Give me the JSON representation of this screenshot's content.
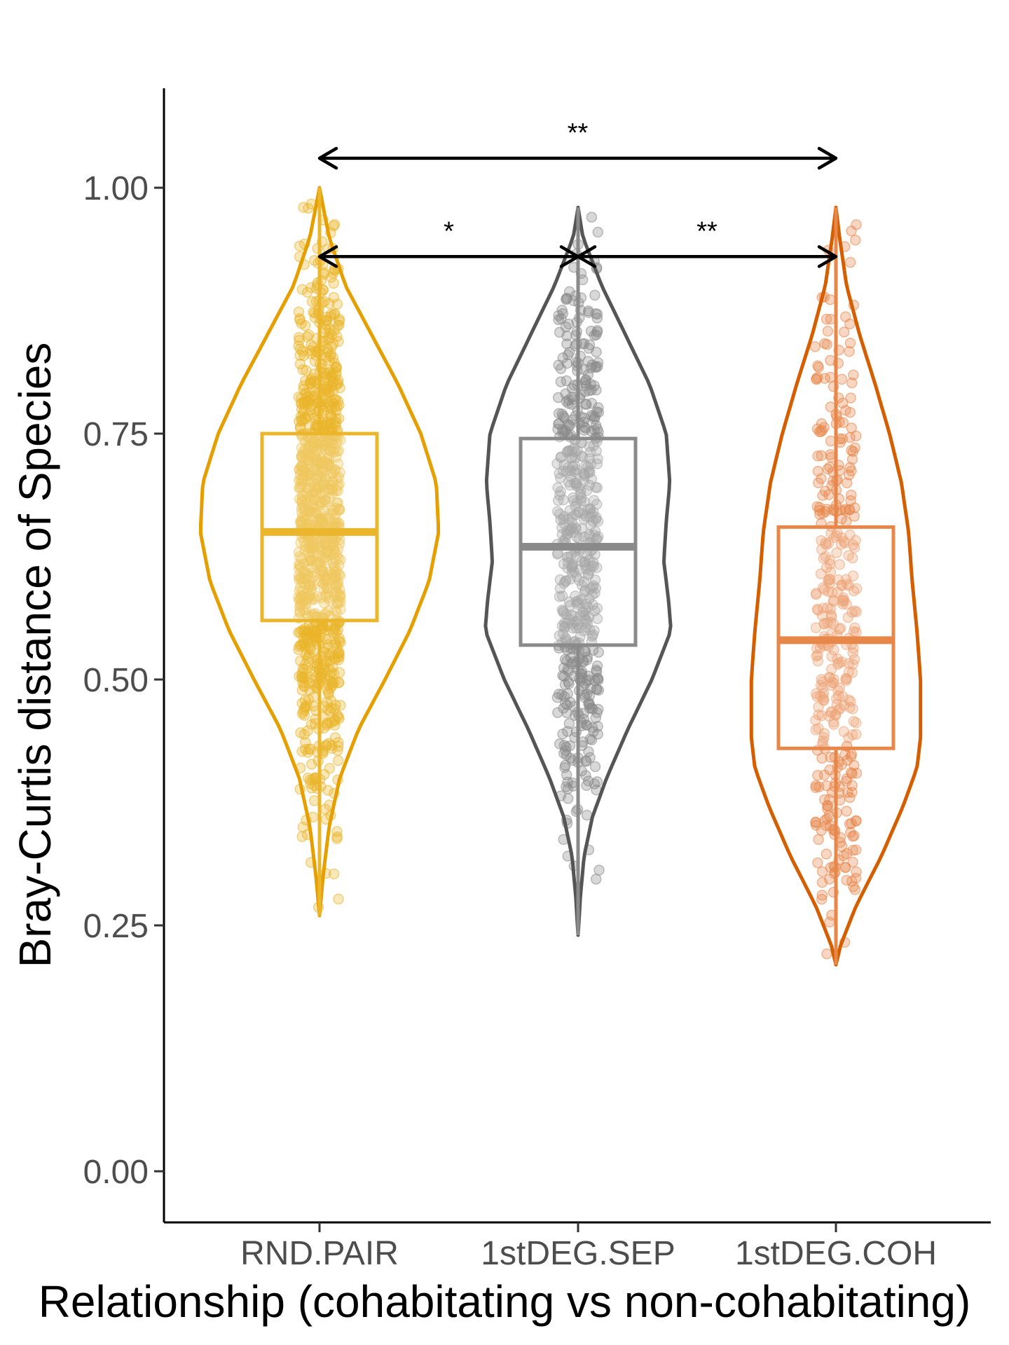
{
  "chart_data": {
    "type": "violin",
    "xlabel": "Relationship (cohabitating vs non-cohabitating)",
    "ylabel": "Bray-Curtis distance of Species",
    "ylim": [
      -0.05,
      1.1
    ],
    "yticks": [
      0.0,
      0.25,
      0.5,
      0.75,
      1.0
    ],
    "ytick_labels": [
      "0.00",
      "0.25",
      "0.50",
      "0.75",
      "1.00"
    ],
    "grid": false,
    "legend": "none",
    "categories": [
      "RND.PAIR",
      "1stDEG.SEP",
      "1stDEG.COH"
    ],
    "series": [
      {
        "category": "RND.PAIR",
        "color": "#E69F00",
        "point_color": "#EBB52C",
        "min": 0.26,
        "q1": 0.56,
        "median": 0.65,
        "q3": 0.75,
        "max": 1.0,
        "n_points": 1000
      },
      {
        "category": "1stDEG.SEP",
        "color": "#555555",
        "point_color": "#8A8A8A",
        "min": 0.24,
        "q1": 0.535,
        "median": 0.635,
        "q3": 0.745,
        "max": 0.98,
        "n_points": 550
      },
      {
        "category": "1stDEG.COH",
        "color": "#D55E00",
        "point_color": "#E8874A",
        "min": 0.21,
        "q1": 0.43,
        "median": 0.54,
        "q3": 0.655,
        "max": 0.98,
        "n_points": 380
      }
    ],
    "comparisons": [
      {
        "from": "RND.PAIR",
        "to": "1stDEG.COH",
        "y": 1.03,
        "label": "**"
      },
      {
        "from": "RND.PAIR",
        "to": "1stDEG.SEP",
        "y": 0.93,
        "label": "*"
      },
      {
        "from": "1stDEG.SEP",
        "to": "1stDEG.COH",
        "y": 0.93,
        "label": "**"
      }
    ]
  }
}
